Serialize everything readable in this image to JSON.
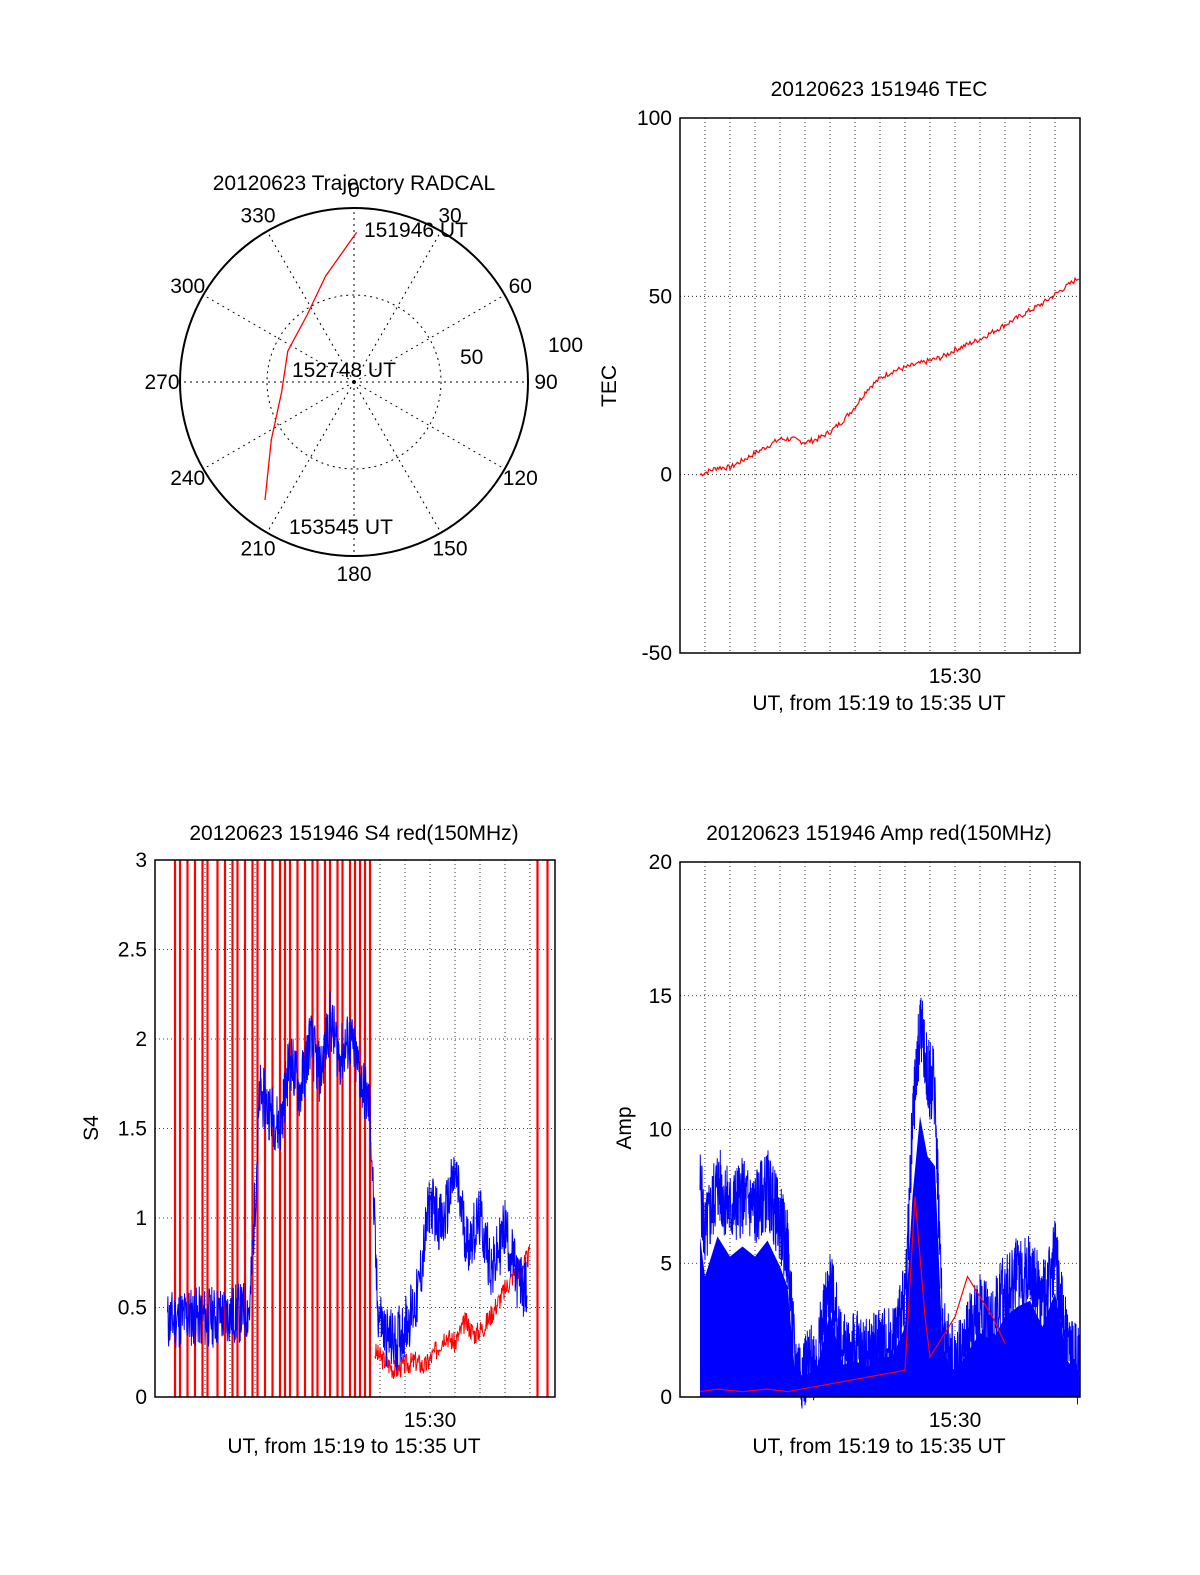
{
  "colors": {
    "red": "#ff0000",
    "blue": "#0000ff",
    "frame": "#000000",
    "grid": "#000000",
    "background": "#ffffff"
  },
  "chart_data": [
    {
      "id": "trajectory",
      "type": "scatter",
      "projection": "polar",
      "title": "20120623 Trajectory RADCAL",
      "angle_labels": [
        "0",
        "30",
        "60",
        "90",
        "120",
        "150",
        "180",
        "210",
        "240",
        "270",
        "300",
        "330"
      ],
      "radial_labels": [
        "50",
        "100"
      ],
      "rlim": [
        0,
        100
      ],
      "grid": true,
      "series": [
        {
          "color": "#ff0000",
          "points": [
            {
              "az": 1,
              "r": 86
            },
            {
              "az": 345,
              "r": 63
            },
            {
              "az": 325,
              "r": 47
            },
            {
              "az": 295,
              "r": 42
            },
            {
              "az": 262,
              "r": 42
            },
            {
              "az": 235,
              "r": 58
            },
            {
              "az": 217,
              "r": 85
            }
          ]
        }
      ],
      "annotations": [
        "151946 UT",
        "152748 UT",
        "153545 UT"
      ]
    },
    {
      "id": "tec",
      "type": "line",
      "title": "20120623 151946 TEC",
      "xlabel": "UT, from 15:19 to 15:35 UT",
      "ylabel": "TEC",
      "xlim": [
        0,
        16
      ],
      "ylim": [
        -50,
        100
      ],
      "yticks": [
        "-50",
        "0",
        "50",
        "100"
      ],
      "xticks": [
        {
          "x": 11,
          "label": "15:30"
        }
      ],
      "grid": true,
      "series": [
        {
          "color": "#ff0000",
          "x": [
            0.8,
            1.5,
            2.0,
            2.5,
            3.0,
            3.5,
            4.0,
            4.5,
            5.0,
            5.5,
            6.0,
            6.5,
            7.0,
            7.5,
            8.0,
            8.5,
            9.0,
            9.5,
            10.0,
            10.5,
            11.0,
            11.5,
            12.0,
            12.5,
            13.0,
            13.5,
            14.0,
            14.5,
            15.0,
            15.5,
            16.0
          ],
          "y": [
            0,
            2,
            2,
            4,
            6,
            8,
            10,
            10,
            9,
            10,
            12,
            15,
            19,
            24,
            27,
            29,
            30,
            31,
            32,
            33,
            35,
            36.5,
            38,
            40,
            42,
            44,
            46,
            48,
            50.5,
            53,
            55.5
          ]
        }
      ]
    },
    {
      "id": "s4",
      "type": "line",
      "title": "20120623 151946 S4 red(150MHz)",
      "xlabel": "UT, from 15:19 to 15:35 UT",
      "ylabel": "S4",
      "xlim": [
        0,
        16
      ],
      "ylim": [
        0,
        3
      ],
      "yticks": [
        "0",
        "0.5",
        "1",
        "1.5",
        "2",
        "2.5",
        "3"
      ],
      "xticks": [
        {
          "x": 11,
          "label": "15:30"
        }
      ],
      "grid": true,
      "series": [
        {
          "color": "#ff0000",
          "x": [
            8.8,
            9.2,
            9.6,
            10.0,
            10.4,
            10.8,
            11.2,
            11.6,
            12.0,
            12.4,
            12.8,
            13.2,
            13.6,
            14.0,
            14.4,
            14.8,
            15.0
          ],
          "y": [
            0.25,
            0.2,
            0.15,
            0.18,
            0.2,
            0.17,
            0.25,
            0.35,
            0.3,
            0.42,
            0.35,
            0.4,
            0.5,
            0.6,
            0.7,
            0.75,
            0.8
          ]
        },
        {
          "color": "#0000ff",
          "x": [
            0.5,
            1.0,
            1.5,
            2.0,
            2.5,
            3.0,
            3.5,
            3.8,
            4.2,
            4.6,
            5.0,
            5.4,
            5.8,
            6.2,
            6.6,
            7.0,
            7.4,
            7.8,
            8.2,
            8.6,
            8.9,
            9.2,
            9.6,
            10.0,
            10.5,
            11.0,
            11.5,
            12.0,
            12.5,
            13.0,
            13.5,
            14.0,
            14.5,
            14.9
          ],
          "y": [
            0.42,
            0.44,
            0.45,
            0.44,
            0.45,
            0.46,
            0.47,
            0.5,
            1.7,
            1.6,
            1.5,
            1.9,
            1.7,
            2.0,
            1.8,
            2.1,
            1.9,
            2.0,
            1.8,
            1.6,
            0.5,
            0.35,
            0.3,
            0.4,
            0.55,
            1.1,
            0.95,
            1.25,
            0.85,
            1.0,
            0.7,
            0.95,
            0.65,
            0.6
          ]
        }
      ]
    },
    {
      "id": "amp",
      "type": "line",
      "title": "20120623 151946 Amp red(150MHz)",
      "xlabel": "UT, from 15:19 to 15:35 UT",
      "ylabel": "Amp",
      "xlim": [
        0,
        16
      ],
      "ylim": [
        0,
        20
      ],
      "yticks": [
        "0",
        "5",
        "10",
        "15",
        "20"
      ],
      "xticks": [
        {
          "x": 11,
          "label": "15:30"
        }
      ],
      "grid": true,
      "series": [
        {
          "color": "#ff0000",
          "x": [
            0.8,
            1.5,
            2.5,
            3.5,
            4.3,
            9.0,
            9.4,
            9.8,
            10.0,
            11.0,
            11.5,
            12.5,
            13.0
          ],
          "y": [
            0.2,
            0.3,
            0.2,
            0.3,
            0.2,
            1.0,
            7.5,
            3.0,
            1.5,
            3.0,
            4.5,
            3.0,
            2.0
          ]
        },
        {
          "color": "#0000ff",
          "x": [
            0.8,
            1.0,
            1.5,
            2.0,
            2.5,
            3.0,
            3.5,
            4.0,
            4.3,
            4.6,
            5.0,
            5.5,
            6.0,
            6.5,
            7.0,
            7.5,
            8.0,
            8.5,
            9.0,
            9.3,
            9.6,
            9.9,
            10.2,
            10.5,
            10.8,
            11.0,
            11.5,
            12.0,
            12.5,
            13.0,
            13.5,
            14.0,
            14.5,
            15.0,
            15.5,
            16.0
          ],
          "y": [
            8,
            6,
            8,
            7,
            7.5,
            7,
            7.8,
            6.5,
            5.5,
            1.2,
            1.0,
            1.5,
            4.2,
            1.6,
            1.8,
            1.5,
            2.0,
            2.0,
            3.5,
            10,
            14,
            12,
            11.5,
            2.5,
            1.5,
            1.2,
            2.2,
            3.2,
            2.8,
            4.0,
            4.5,
            4.8,
            3.5,
            5.2,
            1.8,
            1.0
          ]
        }
      ]
    }
  ]
}
